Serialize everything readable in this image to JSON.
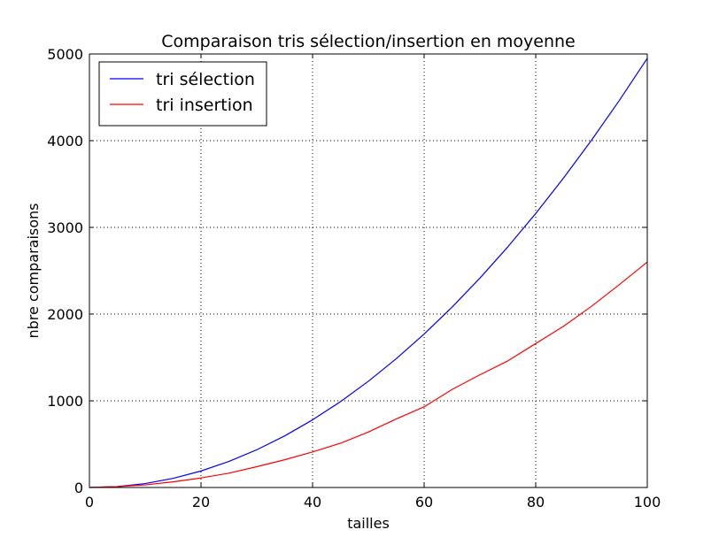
{
  "chart_data": {
    "type": "line",
    "title": "Comparaison tris sélection/insertion en moyenne",
    "xlabel": "tailles",
    "ylabel": "nbre comparaisons",
    "xlim": [
      0,
      100
    ],
    "ylim": [
      0,
      5000
    ],
    "xticks": [
      0,
      20,
      40,
      60,
      80,
      100
    ],
    "yticks": [
      0,
      1000,
      2000,
      3000,
      4000,
      5000
    ],
    "grid": true,
    "legend_position": "top-left",
    "x": [
      0,
      5,
      10,
      15,
      20,
      25,
      30,
      35,
      40,
      45,
      50,
      55,
      60,
      65,
      70,
      75,
      80,
      85,
      90,
      95,
      100
    ],
    "series": [
      {
        "name": "tri sélection",
        "color": "#0000ff",
        "values": [
          0,
          10,
          45,
          105,
          190,
          300,
          435,
          595,
          780,
          990,
          1225,
          1485,
          1770,
          2080,
          2415,
          2775,
          3160,
          3570,
          4005,
          4465,
          4950
        ]
      },
      {
        "name": "tri insertion",
        "color": "#ff0000",
        "values": [
          0,
          10,
          30,
          65,
          110,
          165,
          240,
          320,
          410,
          510,
          640,
          790,
          930,
          1130,
          1300,
          1460,
          1660,
          1860,
          2090,
          2340,
          2600
        ]
      }
    ]
  }
}
